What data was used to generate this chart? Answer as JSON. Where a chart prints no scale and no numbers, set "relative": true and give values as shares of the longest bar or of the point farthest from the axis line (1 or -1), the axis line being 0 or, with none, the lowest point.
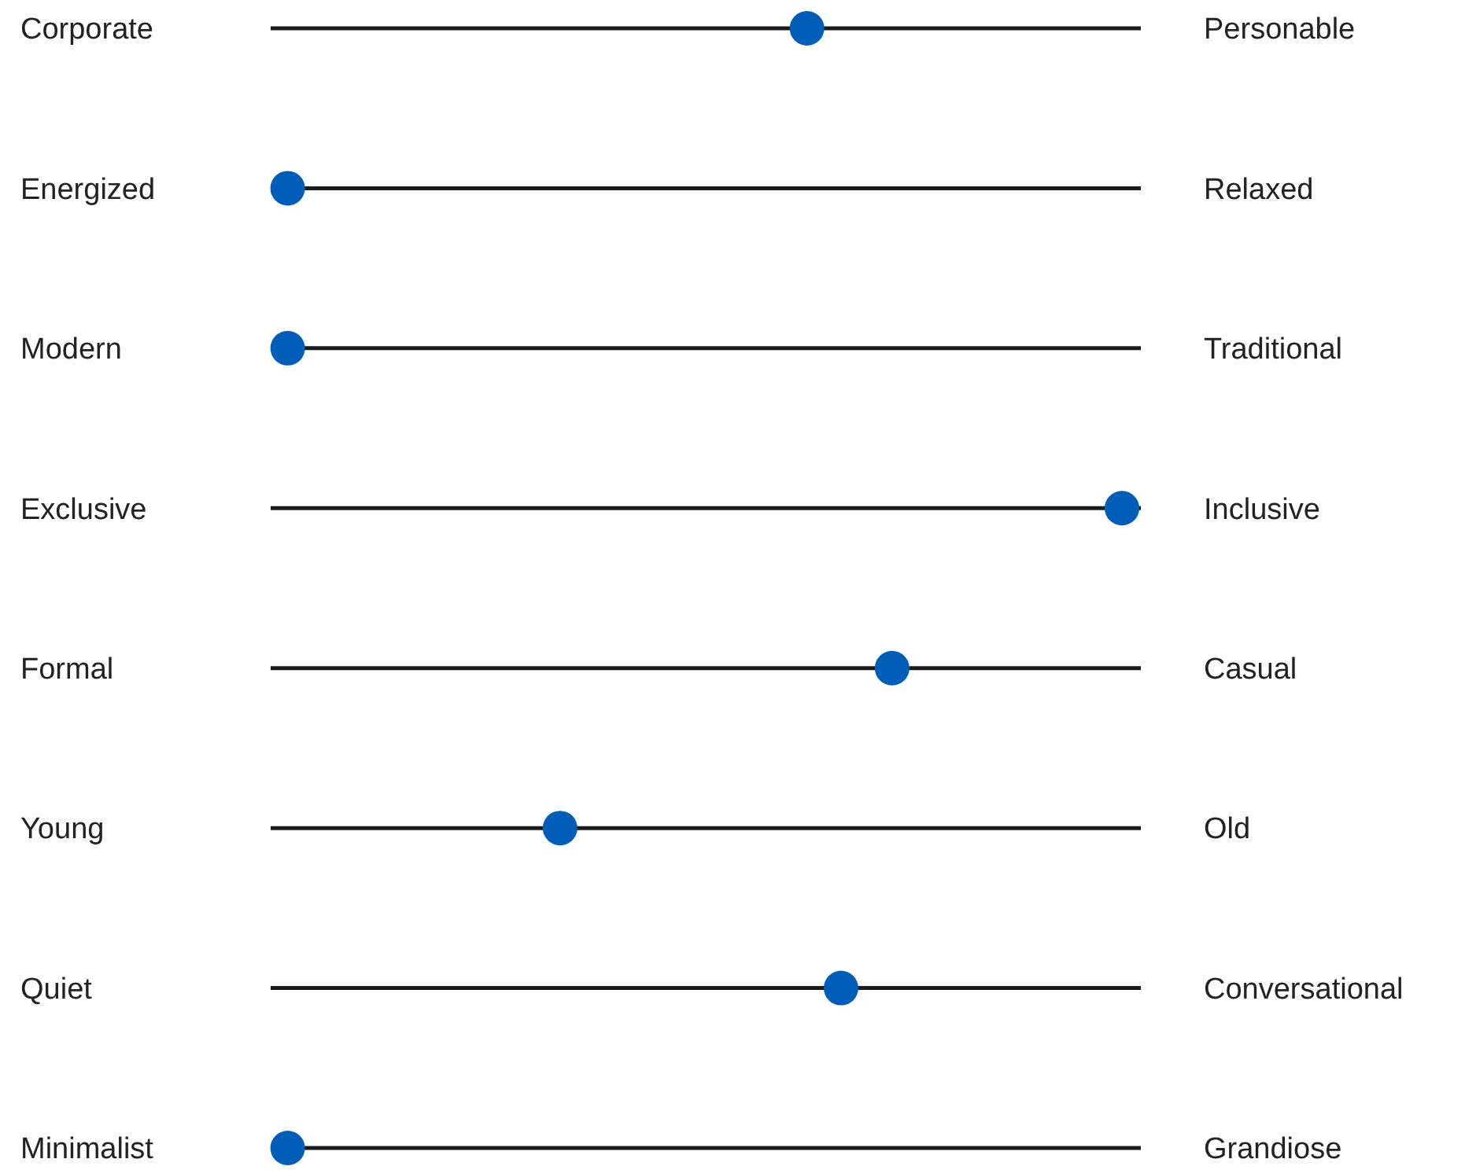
{
  "chart_data": {
    "type": "scatter",
    "orientation": "horizontal",
    "relative": true,
    "grid": "y",
    "marker": "circle",
    "categories": [
      "Corporate",
      "Energized",
      "Modern",
      "Exclusive",
      "Formal",
      "Young",
      "Quiet",
      "Minimalist"
    ],
    "y2_categories": [
      "Personable",
      "Relaxed",
      "Traditional",
      "Inclusive",
      "Casual",
      "Old",
      "Conversational",
      "Grandiose"
    ],
    "series": [
      {
        "color": "#005eb8",
        "values": [
          0.63,
          0.02,
          0.02,
          1,
          0.73,
          0.34,
          0.67,
          0.02
        ]
      }
    ]
  }
}
